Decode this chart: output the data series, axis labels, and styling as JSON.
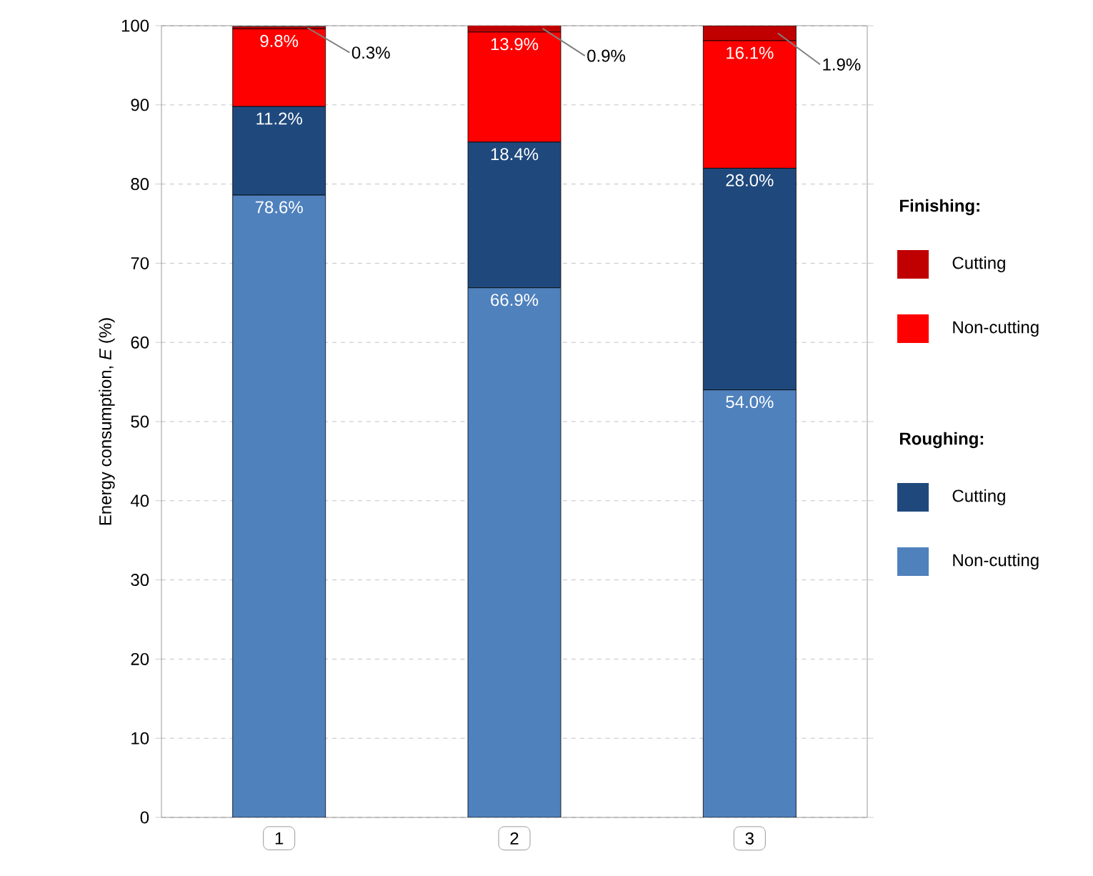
{
  "chart_data": {
    "type": "bar",
    "stacked": true,
    "ylabel": "Energy consumption, *E* (%)",
    "categories": [
      "1",
      "2",
      "3"
    ],
    "ylim": [
      0,
      100
    ],
    "yticks": [
      0,
      10,
      20,
      30,
      40,
      50,
      60,
      70,
      80,
      90,
      100
    ],
    "grid": "y",
    "legend": "right",
    "annotations": [
      "Finishing:",
      "Roughing:"
    ],
    "series": [
      {
        "name": "Non-cutting",
        "color": "#4f81bd",
        "values": [
          78.6,
          66.9,
          54.0
        ],
        "value_labels": [
          "78.6%",
          "66.9%",
          "54.0%"
        ]
      },
      {
        "name": "Cutting",
        "color": "#1f497d",
        "values": [
          11.2,
          18.4,
          28.0
        ],
        "value_labels": [
          "11.2%",
          "18.4%",
          "28.0%"
        ]
      },
      {
        "name": "Non-cutting",
        "color": "#ff0000",
        "values": [
          9.8,
          13.9,
          16.1
        ],
        "value_labels": [
          "9.8%",
          "13.9%",
          "16.1%"
        ]
      },
      {
        "name": "Cutting",
        "color": "#c00000",
        "values": [
          0.3,
          0.9,
          1.9
        ],
        "value_labels": [
          "0.3%",
          "0.9%",
          "1.9%"
        ]
      }
    ]
  }
}
